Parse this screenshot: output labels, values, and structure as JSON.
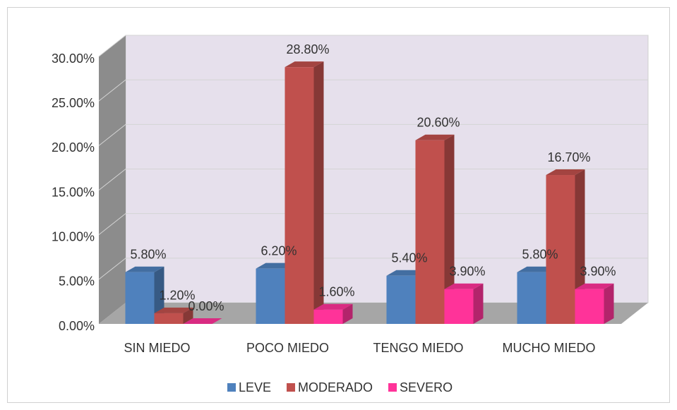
{
  "chart_data": {
    "type": "bar",
    "categories": [
      "SIN MIEDO",
      "POCO MIEDO",
      "TENGO MIEDO",
      "MUCHO MIEDO"
    ],
    "series": [
      {
        "name": "LEVE",
        "color": "#4f81bd",
        "values": [
          5.8,
          6.2,
          5.4,
          5.8
        ],
        "value_labels": [
          "5.80%",
          "6.20%",
          "5.40%",
          "5.80%"
        ]
      },
      {
        "name": "MODERADO",
        "color": "#c0504d",
        "values": [
          1.2,
          28.8,
          20.6,
          16.7
        ],
        "value_labels": [
          "1.20%",
          "28.80%",
          "20.60%",
          "16.70%"
        ]
      },
      {
        "name": "SEVERO",
        "color": "#ff3399",
        "values": [
          0,
          1.6,
          3.9,
          3.9
        ],
        "value_labels": [
          "0.00%",
          "1.60%",
          "3.90%",
          "3.90%"
        ]
      }
    ],
    "ylim": [
      0,
      30
    ],
    "yticks": [
      {
        "value": 0,
        "label": "0.00%"
      },
      {
        "value": 5,
        "label": "5.00%"
      },
      {
        "value": 10,
        "label": "10.00%"
      },
      {
        "value": 15,
        "label": "15.00%"
      },
      {
        "value": 20,
        "label": "20.00%"
      },
      {
        "value": 25,
        "label": "25.00%"
      },
      {
        "value": 30,
        "label": "30.00%"
      }
    ],
    "grid": true,
    "legend": "bottom"
  }
}
